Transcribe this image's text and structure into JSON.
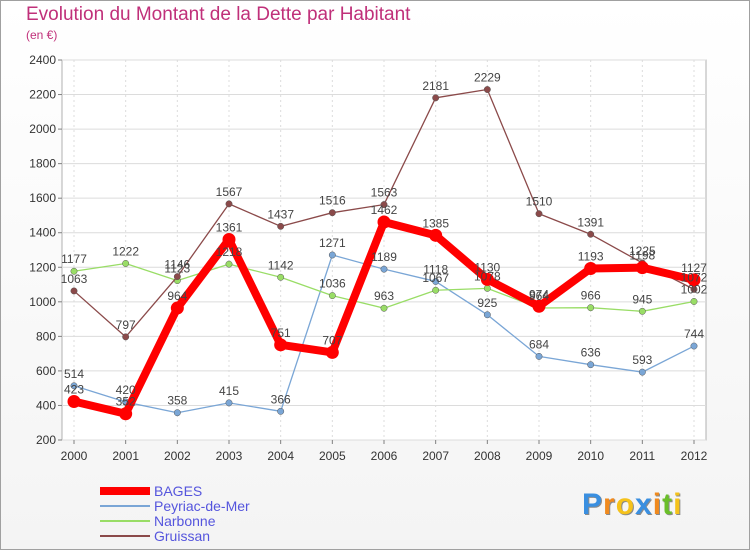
{
  "header": {
    "title": "Evolution du Montant de la Dette par Habitant",
    "subtitle": "(en €)"
  },
  "logo": {
    "letters": [
      "P",
      "r",
      "o",
      "x",
      "i",
      "t",
      "i"
    ],
    "colors": [
      "#3a8fe0",
      "#f08a1e",
      "#f5c21b",
      "#3a8fe0",
      "#f08a1e",
      "#6bbf2a",
      "#f5c21b"
    ]
  },
  "chart_data": {
    "type": "line",
    "title": "Evolution du Montant de la Dette par Habitant",
    "subtitle": "(en €)",
    "x": [
      "2000",
      "2001",
      "2002",
      "2003",
      "2004",
      "2005",
      "2006",
      "2007",
      "2008",
      "2009",
      "2010",
      "2011",
      "2012"
    ],
    "ylim": [
      200,
      2400
    ],
    "yticks": [
      200,
      400,
      600,
      800,
      1000,
      1200,
      1400,
      1600,
      1800,
      2000,
      2200,
      2400
    ],
    "grid": true,
    "legend_position": "bottom-left",
    "series": [
      {
        "name": "BAGES",
        "color": "#ff0000",
        "width": 8,
        "values": [
          423,
          352,
          964,
          1361,
          751,
          707,
          1462,
          1385,
          1130,
          974,
          1193,
          1198,
          1127
        ],
        "labels": [
          "423",
          "352",
          "964",
          "1361",
          "751",
          "707",
          "1462",
          "1385",
          "1130",
          "974",
          "1193",
          "1198",
          "1127"
        ]
      },
      {
        "name": "Peyriac-de-Mer",
        "color": "#7aa6d6",
        "width": 1.3,
        "values": [
          514,
          420,
          358,
          415,
          366,
          1271,
          1189,
          1118,
          925,
          684,
          636,
          593,
          744
        ],
        "labels": [
          "514",
          "420",
          "358",
          "415",
          "366",
          "1271",
          "1189",
          "1118",
          "925",
          "684",
          "636",
          "593",
          "744"
        ]
      },
      {
        "name": "Narbonne",
        "color": "#99dd66",
        "width": 1.3,
        "values": [
          1177,
          1222,
          1123,
          1218,
          1142,
          1036,
          963,
          1067,
          1078,
          964,
          966,
          945,
          1002
        ],
        "labels": [
          "1177",
          "1222",
          "1123",
          "1218",
          "1142",
          "1036",
          "963",
          "1067",
          "1078",
          "964",
          "966",
          "945",
          "1002"
        ]
      },
      {
        "name": "Gruissan",
        "color": "#8b4a4a",
        "width": 1.3,
        "values": [
          1063,
          797,
          1146,
          1567,
          1437,
          1516,
          1563,
          2181,
          2229,
          1510,
          1391,
          1225,
          1072
        ],
        "labels": [
          "1063",
          "797",
          "1146",
          "1567",
          "1437",
          "1516",
          "1563",
          "2181",
          "2229",
          "1510",
          "1391",
          "1225",
          "1072"
        ]
      }
    ]
  }
}
